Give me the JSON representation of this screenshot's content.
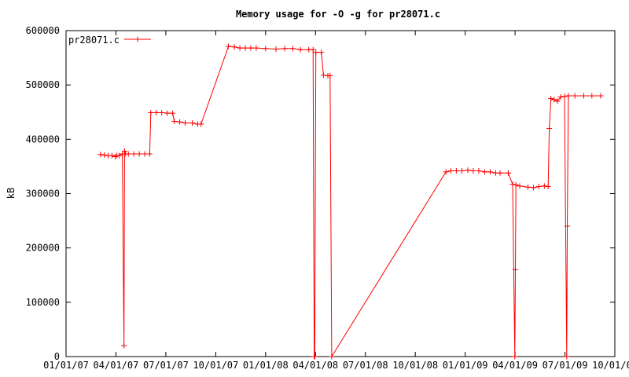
{
  "chart_data": {
    "type": "line",
    "title": "Memory usage for -O -g for pr28071.c",
    "xlabel": "",
    "ylabel": "kB",
    "ylim": [
      0,
      600000
    ],
    "xlim": [
      "2007-01-01",
      "2009-10-01"
    ],
    "x_tick_labels": [
      "01/01/07",
      "04/01/07",
      "07/01/07",
      "10/01/07",
      "01/01/08",
      "04/01/08",
      "07/01/08",
      "10/01/08",
      "01/01/09",
      "04/01/09",
      "07/01/09",
      "10/01/09"
    ],
    "y_tick_labels": [
      "0",
      "100000",
      "200000",
      "300000",
      "400000",
      "500000",
      "600000"
    ],
    "grid": false,
    "legend_position": "top-left",
    "colors": {
      "series": "#ff0000",
      "axes": "#000000"
    },
    "series": [
      {
        "name": "pr28071.c",
        "points": [
          [
            "2007-03-05",
            372000
          ],
          [
            "2007-03-12",
            371000
          ],
          [
            "2007-03-19",
            370000
          ],
          [
            "2007-03-26",
            370000
          ],
          [
            "2007-04-01",
            368000
          ],
          [
            "2007-04-04",
            370000
          ],
          [
            "2007-04-08",
            370000
          ],
          [
            "2007-04-14",
            373000
          ],
          [
            "2007-04-17",
            20000
          ],
          [
            "2007-04-18",
            378000
          ],
          [
            "2007-04-20",
            373000
          ],
          [
            "2007-04-25",
            373000
          ],
          [
            "2007-05-05",
            373000
          ],
          [
            "2007-05-15",
            373000
          ],
          [
            "2007-05-25",
            373000
          ],
          [
            "2007-06-03",
            373000
          ],
          [
            "2007-06-05",
            449000
          ],
          [
            "2007-06-15",
            449000
          ],
          [
            "2007-06-25",
            449000
          ],
          [
            "2007-07-05",
            448000
          ],
          [
            "2007-07-15",
            448000
          ],
          [
            "2007-07-18",
            433000
          ],
          [
            "2007-07-28",
            432000
          ],
          [
            "2007-08-07",
            430000
          ],
          [
            "2007-08-20",
            430000
          ],
          [
            "2007-08-30",
            428000
          ],
          [
            "2007-09-05",
            428000
          ],
          [
            "2007-10-25",
            571000
          ],
          [
            "2007-11-05",
            570000
          ],
          [
            "2007-11-15",
            568000
          ],
          [
            "2007-11-25",
            568000
          ],
          [
            "2007-12-05",
            568000
          ],
          [
            "2007-12-15",
            568000
          ],
          [
            "2008-01-01",
            567000
          ],
          [
            "2008-01-20",
            566000
          ],
          [
            "2008-02-05",
            567000
          ],
          [
            "2008-02-20",
            567000
          ],
          [
            "2008-03-05",
            565000
          ],
          [
            "2008-03-20",
            565000
          ],
          [
            "2008-03-28",
            565000
          ],
          [
            "2008-03-30",
            0
          ],
          [
            "2008-03-31",
            0
          ],
          [
            "2008-04-02",
            560000
          ],
          [
            "2008-04-12",
            560000
          ],
          [
            "2008-04-16",
            518000
          ],
          [
            "2008-04-24",
            517000
          ],
          [
            "2008-04-28",
            517000
          ],
          [
            "2008-05-01",
            0
          ],
          [
            "2008-11-26",
            340000
          ],
          [
            "2008-12-05",
            342000
          ],
          [
            "2008-12-15",
            342000
          ],
          [
            "2008-12-25",
            342000
          ],
          [
            "2009-01-05",
            343000
          ],
          [
            "2009-01-15",
            342000
          ],
          [
            "2009-01-25",
            342000
          ],
          [
            "2009-02-05",
            340000
          ],
          [
            "2009-02-15",
            340000
          ],
          [
            "2009-02-25",
            338000
          ],
          [
            "2009-03-05",
            338000
          ],
          [
            "2009-03-20",
            338000
          ],
          [
            "2009-03-28",
            317000
          ],
          [
            "2009-04-01",
            0
          ],
          [
            "2009-04-02",
            160000
          ],
          [
            "2009-04-03",
            316000
          ],
          [
            "2009-04-10",
            314000
          ],
          [
            "2009-04-25",
            312000
          ],
          [
            "2009-05-05",
            311000
          ],
          [
            "2009-05-15",
            313000
          ],
          [
            "2009-05-25",
            314000
          ],
          [
            "2009-06-01",
            313000
          ],
          [
            "2009-06-03",
            420000
          ],
          [
            "2009-06-06",
            475000
          ],
          [
            "2009-06-12",
            473000
          ],
          [
            "2009-06-18",
            470000
          ],
          [
            "2009-06-24",
            478000
          ],
          [
            "2009-07-01",
            479000
          ],
          [
            "2009-07-05",
            0
          ],
          [
            "2009-07-06",
            240000
          ],
          [
            "2009-07-08",
            480000
          ],
          [
            "2009-07-20",
            480000
          ],
          [
            "2009-08-05",
            480000
          ],
          [
            "2009-08-20",
            480000
          ],
          [
            "2009-09-05",
            480000
          ]
        ]
      }
    ]
  }
}
